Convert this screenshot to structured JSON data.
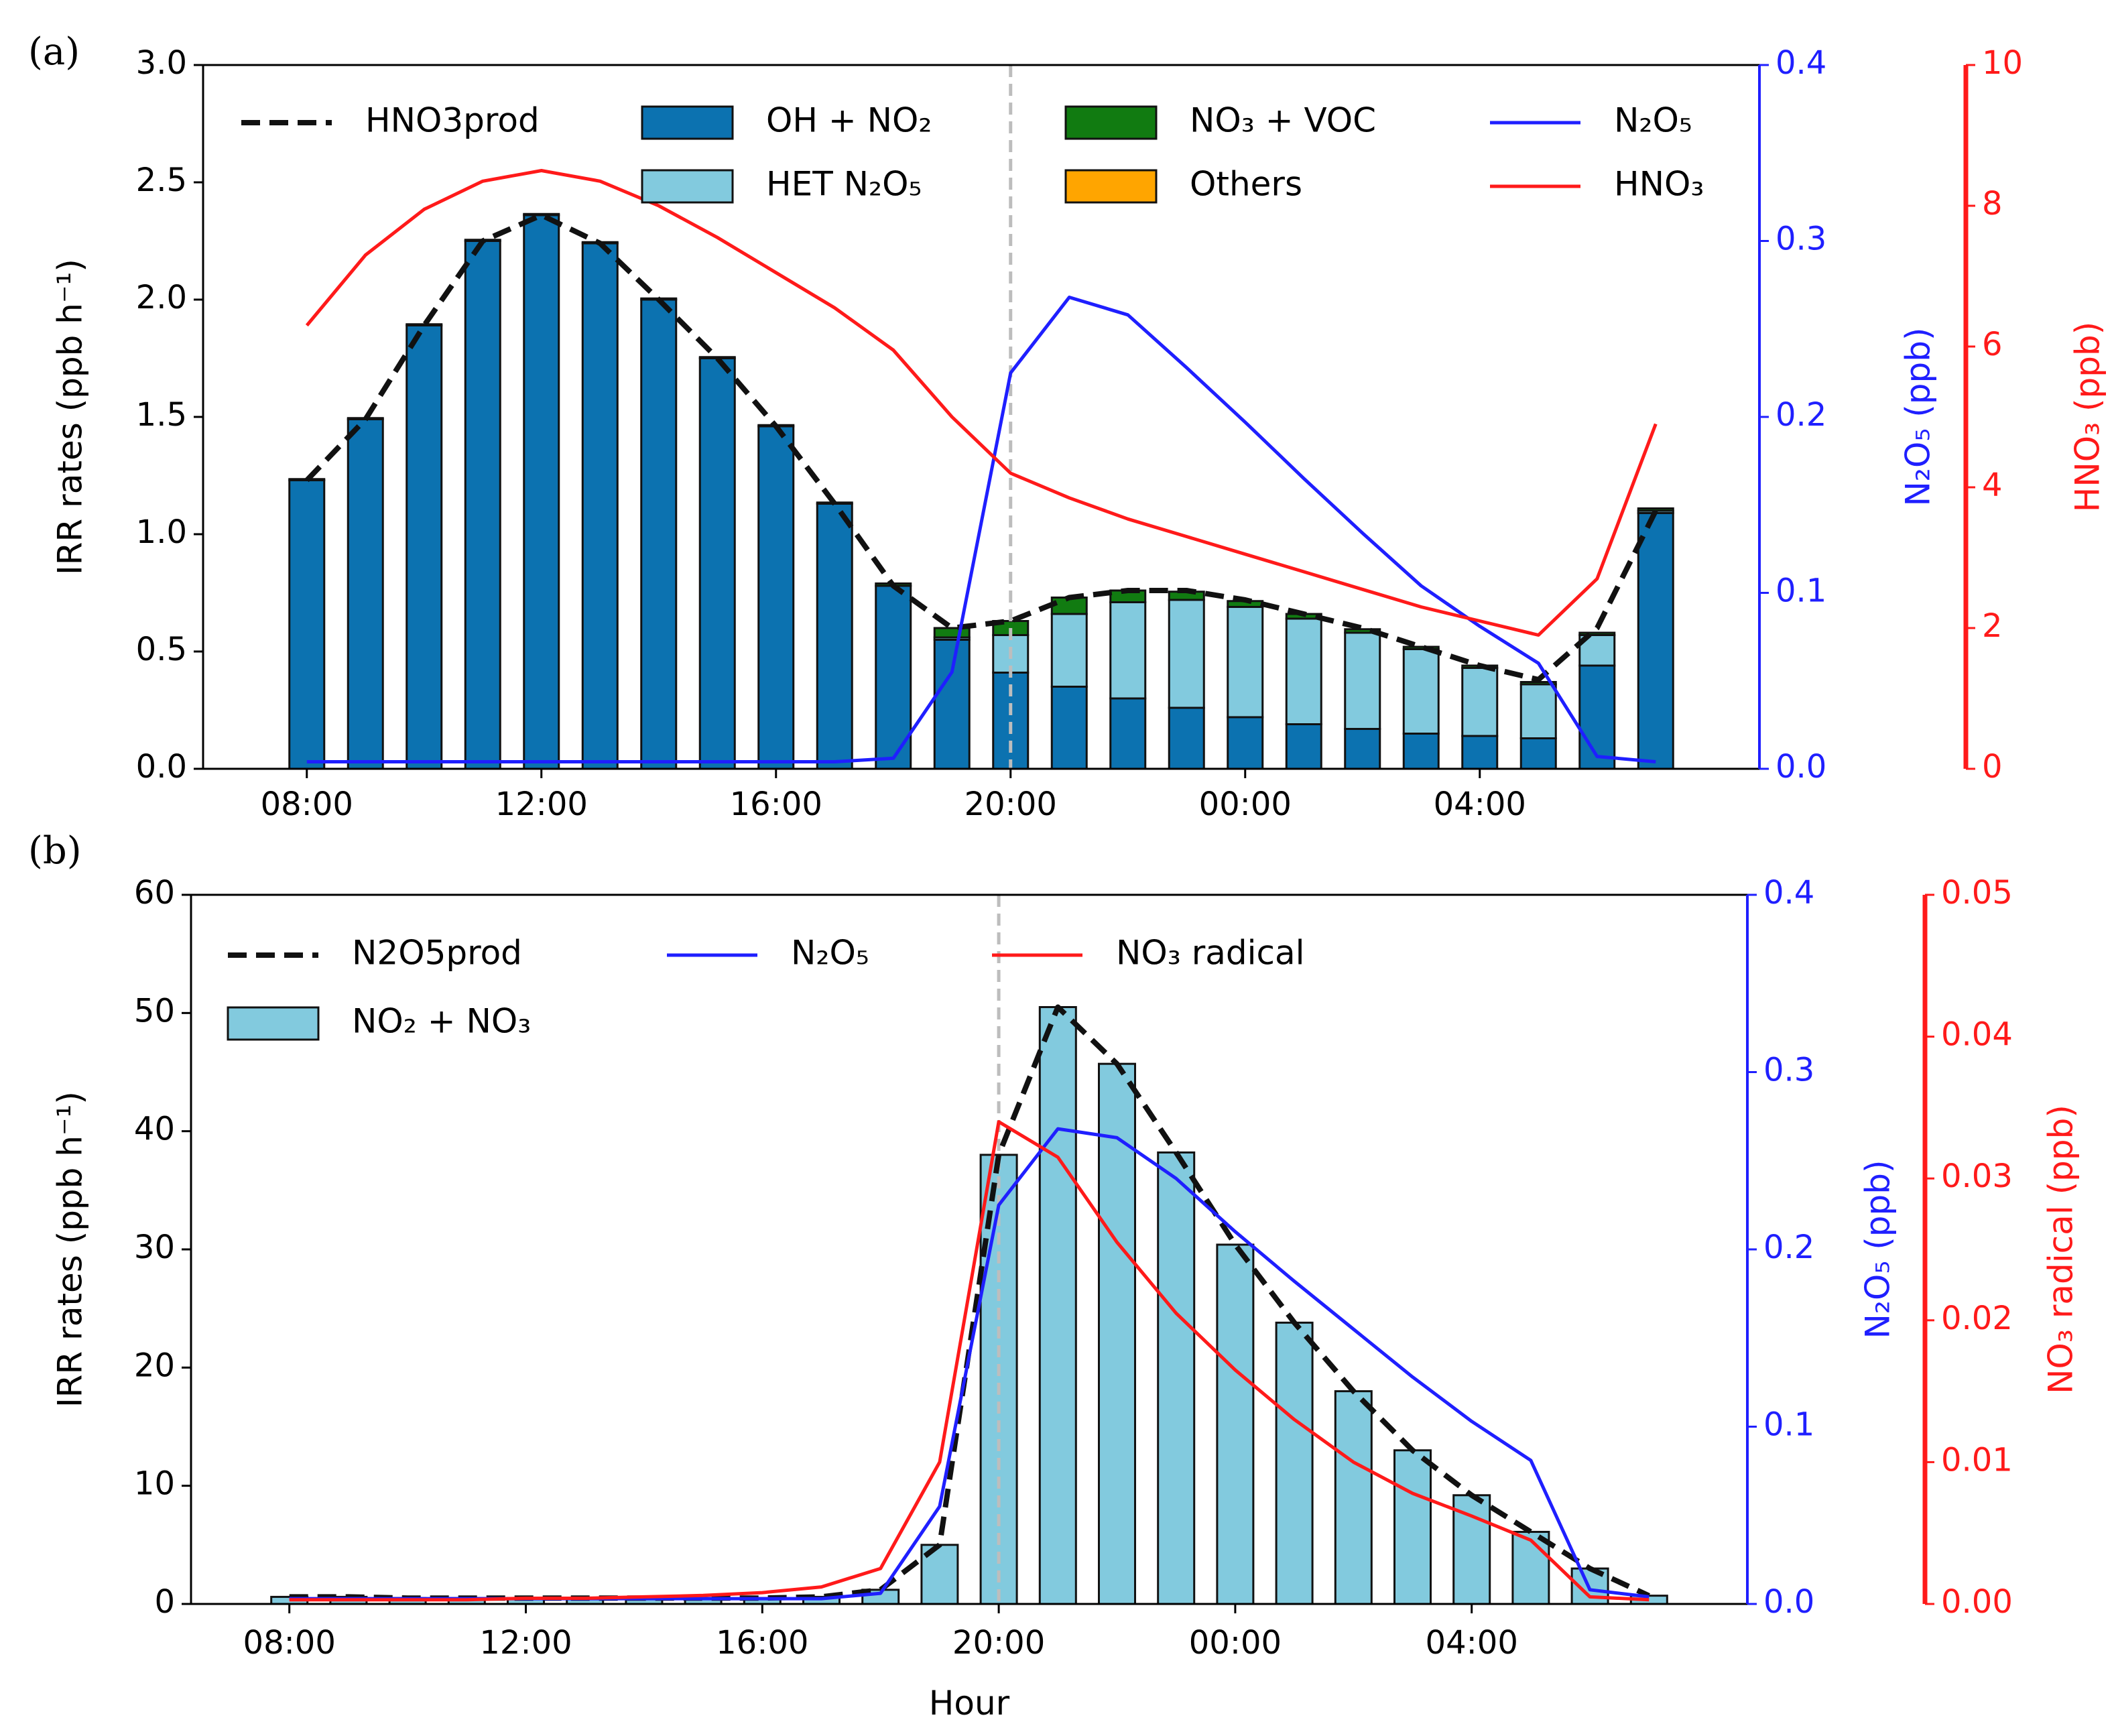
{
  "figure": {
    "panels": [
      {
        "id": "a",
        "label": "(a)"
      },
      {
        "id": "b",
        "label": "(b)"
      }
    ],
    "colors": {
      "oh_no2": "#0c72b0",
      "het_n2o5": "#82cade",
      "no3_voc": "#117b11",
      "others": "#ffa500",
      "no2_no3": "#82cade",
      "n2o5_line": "#1f1fff",
      "hno3_line": "#ff1a1a",
      "no3_line": "#ff1a1a",
      "prod_line": "#111111",
      "midnight_marker": "#bdbdbd"
    }
  },
  "chart_data": [
    {
      "panel": "(a)",
      "type": "bar",
      "stacked": true,
      "categories": [
        "08:00",
        "09:00",
        "10:00",
        "11:00",
        "12:00",
        "13:00",
        "14:00",
        "15:00",
        "16:00",
        "17:00",
        "18:00",
        "19:00",
        "20:00",
        "21:00",
        "22:00",
        "23:00",
        "00:00",
        "01:00",
        "02:00",
        "03:00",
        "04:00",
        "05:00",
        "06:00",
        "07:00"
      ],
      "xtick_labels": [
        "08:00",
        "12:00",
        "16:00",
        "20:00",
        "00:00",
        "04:00"
      ],
      "xlabel": "",
      "ylabel": "IRR rates (ppb h⁻¹)",
      "ylim": [
        0,
        3.0
      ],
      "yticks": [
        "0.0",
        "0.5",
        "1.0",
        "1.5",
        "2.0",
        "2.5",
        "3.0"
      ],
      "vline_category": "20:00",
      "series": [
        {
          "name": "OH + NO2",
          "label": "OH + NO₂",
          "kind": "bar",
          "values": [
            1.23,
            1.49,
            1.89,
            2.25,
            2.36,
            2.24,
            2.0,
            1.75,
            1.46,
            1.13,
            0.78,
            0.55,
            0.41,
            0.35,
            0.3,
            0.26,
            0.22,
            0.19,
            0.17,
            0.15,
            0.14,
            0.13,
            0.44,
            1.09
          ]
        },
        {
          "name": "HET N2O5",
          "label": "HET N₂O₅",
          "kind": "bar",
          "values": [
            0,
            0,
            0,
            0,
            0,
            0,
            0,
            0,
            0,
            0,
            0,
            0.01,
            0.16,
            0.31,
            0.41,
            0.46,
            0.47,
            0.45,
            0.41,
            0.36,
            0.29,
            0.23,
            0.13,
            0.01
          ]
        },
        {
          "name": "NO3 + VOC",
          "label": "NO₃ + VOC",
          "kind": "bar",
          "values": [
            0.005,
            0.005,
            0.005,
            0.005,
            0.005,
            0.005,
            0.005,
            0.005,
            0.005,
            0.005,
            0.01,
            0.04,
            0.06,
            0.07,
            0.05,
            0.035,
            0.025,
            0.02,
            0.015,
            0.01,
            0.01,
            0.01,
            0.01,
            0.01
          ]
        },
        {
          "name": "Others",
          "label": "Others",
          "kind": "bar",
          "values": [
            0,
            0,
            0,
            0,
            0,
            0,
            0,
            0,
            0,
            0,
            0,
            0,
            0,
            0,
            0,
            0,
            0,
            0,
            0,
            0,
            0,
            0,
            0,
            0
          ]
        },
        {
          "name": "HNO3prod",
          "label": "HNO3prod",
          "kind": "line",
          "style": "dashed",
          "values": [
            1.23,
            1.49,
            1.89,
            2.25,
            2.36,
            2.24,
            2.0,
            1.75,
            1.46,
            1.13,
            0.78,
            0.6,
            0.63,
            0.73,
            0.76,
            0.76,
            0.72,
            0.66,
            0.6,
            0.52,
            0.44,
            0.38,
            0.6,
            1.1
          ]
        },
        {
          "name": "N2O5",
          "label": "N₂O₅",
          "kind": "line",
          "axis": "right1",
          "values": [
            0.004,
            0.004,
            0.004,
            0.004,
            0.004,
            0.004,
            0.004,
            0.004,
            0.004,
            0.004,
            0.006,
            0.055,
            0.225,
            0.268,
            0.258,
            0.228,
            0.197,
            0.165,
            0.134,
            0.104,
            0.081,
            0.06,
            0.007,
            0.004
          ]
        },
        {
          "name": "HNO3",
          "label": "HNO₃",
          "kind": "line",
          "axis": "right2",
          "values": [
            6.3,
            7.3,
            7.95,
            8.35,
            8.5,
            8.35,
            8.0,
            7.55,
            7.05,
            6.55,
            5.95,
            5.0,
            4.2,
            3.85,
            3.55,
            3.3,
            3.05,
            2.8,
            2.55,
            2.3,
            2.1,
            1.9,
            2.7,
            4.9
          ]
        }
      ],
      "right_axes": [
        {
          "id": "right1",
          "label": "N₂O₅ (ppb)",
          "color": "#1f1fff",
          "ylim": [
            0,
            0.4
          ],
          "ticks": [
            "0.0",
            "0.1",
            "0.2",
            "0.3",
            "0.4"
          ]
        },
        {
          "id": "right2",
          "label": "HNO₃ (ppb)",
          "color": "#ff1a1a",
          "ylim": [
            0,
            10
          ],
          "ticks": [
            "0",
            "2",
            "4",
            "6",
            "8",
            "10"
          ]
        }
      ]
    },
    {
      "panel": "(b)",
      "type": "bar",
      "stacked": false,
      "categories": [
        "08:00",
        "09:00",
        "10:00",
        "11:00",
        "12:00",
        "13:00",
        "14:00",
        "15:00",
        "16:00",
        "17:00",
        "18:00",
        "19:00",
        "20:00",
        "21:00",
        "22:00",
        "23:00",
        "00:00",
        "01:00",
        "02:00",
        "03:00",
        "04:00",
        "05:00",
        "06:00",
        "07:00"
      ],
      "xtick_labels": [
        "08:00",
        "12:00",
        "16:00",
        "20:00",
        "00:00",
        "04:00"
      ],
      "xlabel": "Hour",
      "ylabel": "IRR rates (ppb h⁻¹)",
      "ylim": [
        0,
        60
      ],
      "yticks": [
        "0",
        "10",
        "20",
        "30",
        "40",
        "50",
        "60"
      ],
      "vline_category": "20:00",
      "series": [
        {
          "name": "NO2 + NO3",
          "label": "NO₂ + NO₃",
          "kind": "bar",
          "values": [
            0.6,
            0.6,
            0.5,
            0.5,
            0.5,
            0.5,
            0.5,
            0.5,
            0.5,
            0.6,
            1.2,
            5.0,
            38.0,
            50.5,
            45.7,
            38.2,
            30.4,
            23.8,
            18.0,
            13.0,
            9.2,
            6.1,
            3.0,
            0.7
          ]
        },
        {
          "name": "N2O5prod",
          "label": "N2O5prod",
          "kind": "line",
          "style": "dashed",
          "values": [
            0.6,
            0.6,
            0.5,
            0.5,
            0.5,
            0.5,
            0.5,
            0.5,
            0.5,
            0.6,
            1.2,
            5.0,
            38.0,
            50.5,
            45.7,
            38.2,
            30.4,
            23.8,
            18.0,
            13.0,
            9.2,
            6.1,
            3.0,
            0.7
          ]
        },
        {
          "name": "N2O5",
          "label": "N₂O₅",
          "kind": "line",
          "axis": "right1",
          "values": [
            0.003,
            0.003,
            0.003,
            0.003,
            0.003,
            0.003,
            0.003,
            0.003,
            0.003,
            0.003,
            0.006,
            0.055,
            0.225,
            0.268,
            0.263,
            0.24,
            0.21,
            0.182,
            0.155,
            0.128,
            0.103,
            0.081,
            0.008,
            0.004
          ]
        },
        {
          "name": "NO3 radical",
          "label": "NO₃ radical",
          "kind": "line",
          "axis": "right2",
          "values": [
            0.0003,
            0.0003,
            0.0003,
            0.0003,
            0.0004,
            0.0004,
            0.0005,
            0.0006,
            0.0008,
            0.0012,
            0.0025,
            0.01,
            0.034,
            0.0315,
            0.0255,
            0.0205,
            0.0165,
            0.013,
            0.01,
            0.0078,
            0.0062,
            0.0045,
            0.0005,
            0.0003
          ]
        }
      ],
      "right_axes": [
        {
          "id": "right1",
          "label": "N₂O₅ (ppb)",
          "color": "#1f1fff",
          "ylim": [
            0,
            0.4
          ],
          "ticks": [
            "0.0",
            "0.1",
            "0.2",
            "0.3",
            "0.4"
          ]
        },
        {
          "id": "right2",
          "label": "NO₃ radical (ppb)",
          "color": "#ff1a1a",
          "ylim": [
            0,
            0.05
          ],
          "ticks": [
            "0.00",
            "0.01",
            "0.02",
            "0.03",
            "0.04",
            "0.05"
          ]
        }
      ]
    }
  ]
}
